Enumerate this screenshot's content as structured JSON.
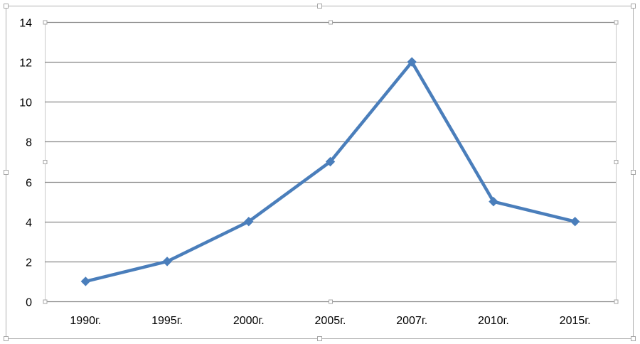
{
  "chart_data": {
    "type": "line",
    "categories": [
      "1990г.",
      "1995г.",
      "2000г.",
      "2005г.",
      "2007г.",
      "2010г.",
      "2015г."
    ],
    "series": [
      {
        "values": [
          1,
          2,
          4,
          7,
          12,
          5,
          4
        ]
      }
    ],
    "ylim": [
      0,
      14
    ],
    "yticks": [
      0,
      2,
      4,
      6,
      8,
      10,
      12,
      14
    ],
    "grid": true,
    "legend": "none",
    "colors": {
      "line": "#4a7ebb",
      "grid": "#868686",
      "axis": "#868686",
      "selection": "#a6a6a6"
    }
  }
}
